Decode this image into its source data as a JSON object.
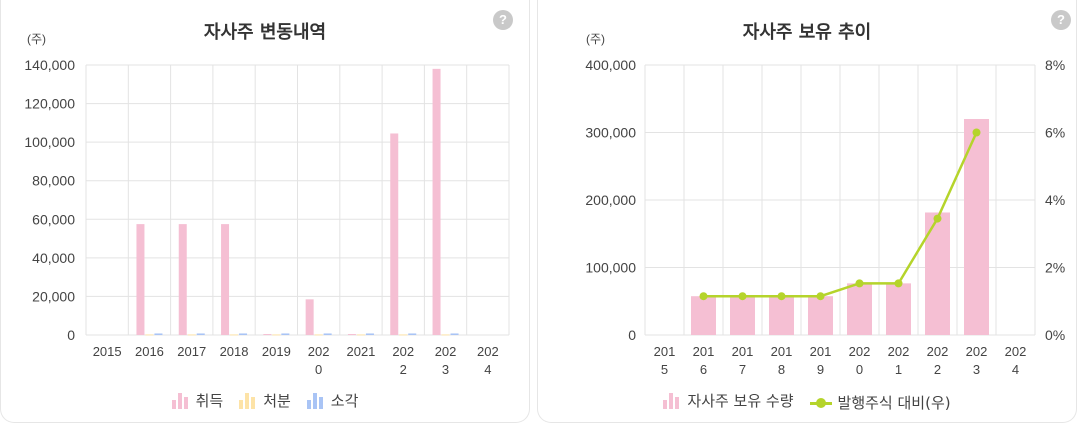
{
  "left_panel": {
    "title": "자사주 변동내역",
    "help_label": "?",
    "unit_label": "(주)",
    "legend": [
      {
        "label": "취득",
        "color": "#f5bfd3",
        "icon": "bar-chart-icon"
      },
      {
        "label": "처분",
        "color": "#fde3a7",
        "icon": "bar-chart-icon"
      },
      {
        "label": "소각",
        "color": "#a9c4f5",
        "icon": "bar-chart-icon"
      }
    ]
  },
  "right_panel": {
    "title": "자사주 보유 추이",
    "help_label": "?",
    "unit_label": "(주)",
    "legend": [
      {
        "label": "자사주 보유 수량",
        "color": "#f5bfd3",
        "icon": "bar-chart-icon"
      },
      {
        "label": "발행주식 대비(우)",
        "color": "#b5d42b",
        "icon": "line-marker-icon"
      }
    ]
  },
  "chart_data": [
    {
      "type": "bar",
      "title": "자사주 변동내역",
      "ylabel": "(주)",
      "categories": [
        [
          "2015"
        ],
        [
          "2016"
        ],
        [
          "2017"
        ],
        [
          "2018"
        ],
        [
          "2019"
        ],
        [
          "202",
          "0"
        ],
        [
          "2021"
        ],
        [
          "202",
          "2"
        ],
        [
          "202",
          "3"
        ],
        [
          "202",
          "4"
        ]
      ],
      "yticks": [
        "0",
        "20,000",
        "40,000",
        "60,000",
        "80,000",
        "100,000",
        "120,000",
        "140,000"
      ],
      "ylim": [
        0,
        140000
      ],
      "grid": true,
      "legend_position": "bottom",
      "series": [
        {
          "name": "취득",
          "color": "#f5bfd3",
          "values": [
            0,
            57500,
            57500,
            57500,
            500,
            18500,
            500,
            104500,
            138000,
            0
          ]
        },
        {
          "name": "처분",
          "color": "#fde3a7",
          "values": [
            0,
            300,
            300,
            300,
            300,
            300,
            300,
            300,
            300,
            0
          ]
        },
        {
          "name": "소각",
          "color": "#a9c4f5",
          "values": [
            0,
            800,
            800,
            800,
            800,
            800,
            800,
            800,
            800,
            0
          ]
        }
      ]
    },
    {
      "type": "bar",
      "title": "자사주 보유 추이",
      "ylabel": "(주)",
      "categories": [
        [
          "201",
          "5"
        ],
        [
          "201",
          "6"
        ],
        [
          "201",
          "7"
        ],
        [
          "201",
          "8"
        ],
        [
          "201",
          "9"
        ],
        [
          "202",
          "0"
        ],
        [
          "202",
          "1"
        ],
        [
          "202",
          "2"
        ],
        [
          "202",
          "3"
        ],
        [
          "202",
          "4"
        ]
      ],
      "yticks": [
        "0",
        "100,000",
        "200,000",
        "300,000",
        "400,000"
      ],
      "ylim": [
        0,
        400000
      ],
      "y2ticks": [
        "0%",
        "2%",
        "4%",
        "6%",
        "8%"
      ],
      "y2lim": [
        0,
        8
      ],
      "grid": true,
      "legend_position": "bottom",
      "series": [
        {
          "name": "자사주 보유 수량",
          "type": "bar",
          "axis": "left",
          "color": "#f5bfd3",
          "values": [
            null,
            57500,
            57500,
            57500,
            57500,
            76500,
            76500,
            181500,
            320000,
            null
          ]
        },
        {
          "name": "발행주식 대비(우)",
          "type": "line",
          "axis": "right",
          "color": "#b5d42b",
          "values": [
            null,
            1.15,
            1.15,
            1.15,
            1.15,
            1.53,
            1.53,
            3.45,
            6.0,
            null
          ]
        }
      ]
    }
  ]
}
